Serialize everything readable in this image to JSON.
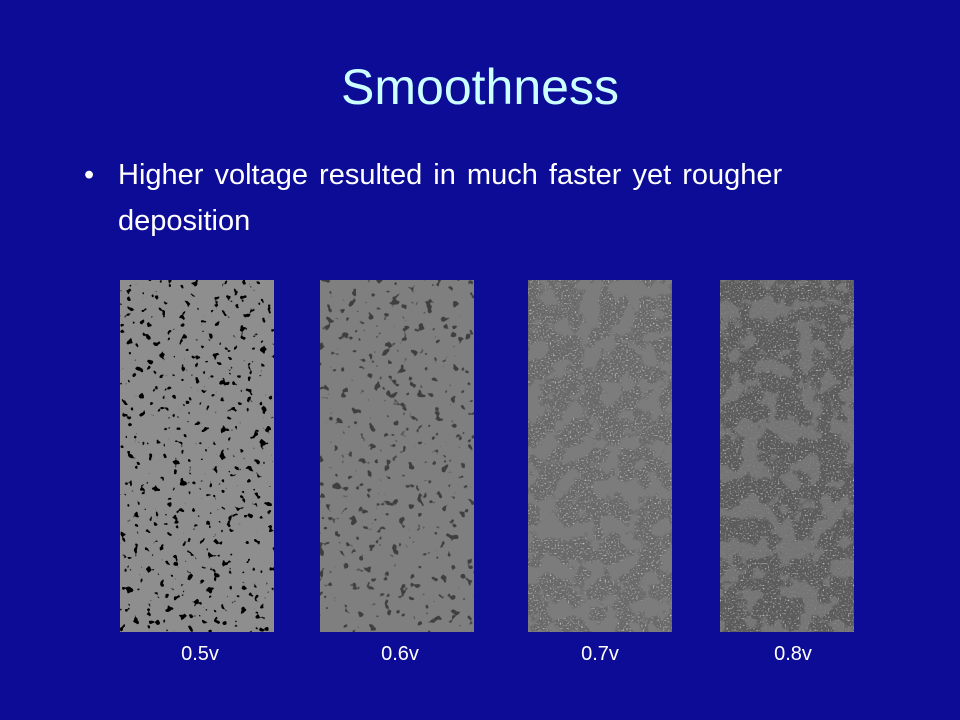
{
  "title": "Smoothness",
  "bullets": [
    "Higher voltage resulted in much faster yet rougher deposition"
  ],
  "images": [
    {
      "label": "0.5v"
    },
    {
      "label": "0.6v"
    },
    {
      "label": "0.7v"
    },
    {
      "label": "0.8v"
    }
  ]
}
